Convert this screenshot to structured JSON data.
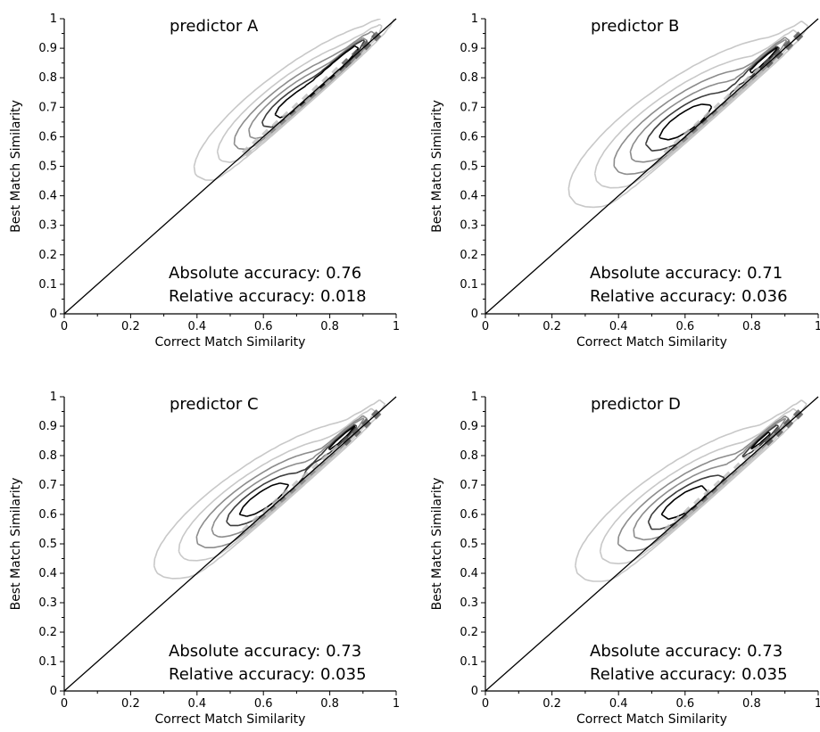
{
  "chart_data": [
    {
      "type": "contour",
      "title": "predictor A",
      "xlabel": "Correct Match Similarity",
      "ylabel": "Best Match Similarity",
      "xlim": [
        0,
        1
      ],
      "ylim": [
        0,
        1
      ],
      "xticks": [
        "0",
        "0.2",
        "0.4",
        "0.6",
        "0.8",
        "1"
      ],
      "yticks": [
        "0",
        "0.1",
        "0.2",
        "0.3",
        "0.4",
        "0.5",
        "0.6",
        "0.7",
        "0.8",
        "0.9",
        "1"
      ],
      "diagonal": {
        "x": [
          0,
          1
        ],
        "y": [
          0,
          1
        ]
      },
      "annotations": [
        "Absolute accuracy: 0.76",
        "Relative accuracy: 0.018"
      ],
      "density": {
        "center": [
          0.7,
          0.72
        ],
        "sx": 0.15,
        "sy": 0.13,
        "rho": 0.85
      },
      "grid": false
    },
    {
      "type": "contour",
      "title": "predictor B",
      "xlabel": "Correct Match Similarity",
      "ylabel": "Best Match Similarity",
      "xlim": [
        0,
        1
      ],
      "ylim": [
        0,
        1
      ],
      "xticks": [
        "0",
        "0.2",
        "0.4",
        "0.6",
        "0.8",
        "1"
      ],
      "yticks": [
        "0",
        "0.1",
        "0.2",
        "0.3",
        "0.4",
        "0.5",
        "0.6",
        "0.7",
        "0.8",
        "0.9",
        "1"
      ],
      "diagonal": {
        "x": [
          0,
          1
        ],
        "y": [
          0,
          1
        ]
      },
      "annotations": [
        "Absolute accuracy: 0.71",
        "Relative accuracy: 0.036"
      ],
      "density": {
        "center": [
          0.6,
          0.65
        ],
        "sx": 0.17,
        "sy": 0.14,
        "rho": 0.8
      },
      "grid": false
    },
    {
      "type": "contour",
      "title": "predictor C",
      "xlabel": "Correct Match Similarity",
      "ylabel": "Best Match Similarity",
      "xlim": [
        0,
        1
      ],
      "ylim": [
        0,
        1
      ],
      "xticks": [
        "0",
        "0.2",
        "0.4",
        "0.6",
        "0.8",
        "1"
      ],
      "yticks": [
        "0",
        "0.1",
        "0.2",
        "0.3",
        "0.4",
        "0.5",
        "0.6",
        "0.7",
        "0.8",
        "0.9",
        "1"
      ],
      "diagonal": {
        "x": [
          0,
          1
        ],
        "y": [
          0,
          1
        ]
      },
      "annotations": [
        "Absolute accuracy: 0.73",
        "Relative accuracy: 0.035"
      ],
      "density": {
        "center": [
          0.6,
          0.65
        ],
        "sx": 0.16,
        "sy": 0.13,
        "rho": 0.82
      },
      "grid": false
    },
    {
      "type": "contour",
      "title": "predictor D",
      "xlabel": "Correct Match Similarity",
      "ylabel": "Best Match Similarity",
      "xlim": [
        0,
        1
      ],
      "ylim": [
        0,
        1
      ],
      "xticks": [
        "0",
        "0.2",
        "0.4",
        "0.6",
        "0.8",
        "1"
      ],
      "yticks": [
        "0",
        "0.1",
        "0.2",
        "0.3",
        "0.4",
        "0.5",
        "0.6",
        "0.7",
        "0.8",
        "0.9",
        "1"
      ],
      "diagonal": {
        "x": [
          0,
          1
        ],
        "y": [
          0,
          1
        ]
      },
      "annotations": [
        "Absolute accuracy: 0.73",
        "Relative accuracy: 0.035"
      ],
      "density": {
        "center": [
          0.6,
          0.64
        ],
        "sx": 0.16,
        "sy": 0.13,
        "rho": 0.8
      },
      "grid": false
    }
  ],
  "colors": {
    "contour_light": "#c8c8c8",
    "contour_mid": "#8c8c8c",
    "contour_dark": "#3c3c3c",
    "contour_darkest": "#000000",
    "diagonal": "#000000",
    "axis": "#000000"
  }
}
